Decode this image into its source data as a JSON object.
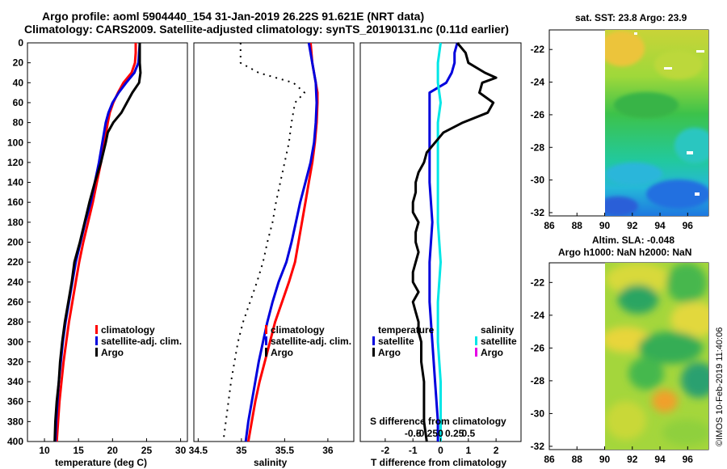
{
  "header": {
    "line1": "Argo profile: aoml 5904440_154 31-Jan-2019 26.22S 91.621E (NRT data)",
    "line2": "Climatology: CARS2009. Satellite-adjusted climatology: synTS_20190131.nc (0.11d earlier)"
  },
  "footer": "©IMOS 10-Feb-2019 11:40:06",
  "colors": {
    "climatology": "#ff0000",
    "satellite": "#0000dd",
    "argo": "#000000",
    "sat_salinity": "#00e6e6",
    "sat_salinity_magenta": "#e600e6"
  },
  "chart_data": [
    {
      "type": "line",
      "panel": "temperature",
      "xlabel": "temperature (deg C)",
      "ylabel": "",
      "xlim": [
        7.5,
        31
      ],
      "ylim": [
        400,
        0
      ],
      "xticks": [
        10,
        15,
        20,
        25,
        30
      ],
      "yticks": [
        0,
        20,
        40,
        60,
        80,
        100,
        120,
        140,
        160,
        180,
        200,
        220,
        240,
        260,
        280,
        300,
        320,
        340,
        360,
        380,
        400
      ],
      "legend": [
        "climatology",
        "satellite-adj. clim.",
        "Argo"
      ],
      "legend_position": "lower-right",
      "series": [
        {
          "name": "climatology",
          "color": "#ff0000",
          "depth": [
            0,
            10,
            20,
            30,
            40,
            50,
            60,
            70,
            80,
            100,
            120,
            140,
            160,
            180,
            200,
            220,
            240,
            260,
            280,
            300,
            320,
            340,
            360,
            380,
            400
          ],
          "values": [
            23.4,
            23.4,
            23.3,
            22.8,
            21.6,
            20.8,
            20.1,
            19.6,
            19.3,
            18.8,
            18.3,
            17.7,
            17.1,
            16.4,
            15.7,
            15.1,
            14.6,
            14.1,
            13.6,
            13.2,
            12.8,
            12.5,
            12.2,
            12.0,
            11.8
          ]
        },
        {
          "name": "satellite-adj. clim.",
          "color": "#0000dd",
          "depth": [
            0,
            10,
            20,
            30,
            40,
            50,
            60,
            70,
            80,
            100,
            120,
            140,
            160,
            180,
            200,
            220,
            240,
            260,
            280,
            300,
            320,
            340,
            360,
            380,
            400
          ],
          "values": [
            24.0,
            23.9,
            23.8,
            23.2,
            22.0,
            20.9,
            20.0,
            19.4,
            19.0,
            18.5,
            18.0,
            17.4,
            16.8,
            16.0,
            15.3,
            14.6,
            14.1,
            13.6,
            13.1,
            12.7,
            12.4,
            12.1,
            11.9,
            11.7,
            11.6
          ]
        },
        {
          "name": "Argo",
          "color": "#000000",
          "depth": [
            0,
            10,
            20,
            30,
            40,
            50,
            60,
            70,
            80,
            90,
            100,
            120,
            140,
            160,
            180,
            200,
            220,
            240,
            260,
            280,
            300,
            320,
            340,
            360,
            380,
            400
          ],
          "values": [
            24.0,
            24.0,
            24.0,
            24.1,
            23.9,
            22.9,
            22.1,
            21.3,
            20.1,
            19.3,
            19.0,
            18.3,
            17.4,
            16.6,
            15.9,
            15.2,
            14.4,
            14.0,
            13.5,
            13.0,
            12.6,
            12.3,
            12.1,
            11.8,
            11.6,
            11.5
          ]
        }
      ]
    },
    {
      "type": "line",
      "panel": "salinity",
      "xlabel": "salinity",
      "xlim": [
        34.45,
        36.3
      ],
      "ylim": [
        400,
        0
      ],
      "xtick_values": [
        34.5,
        35,
        35.5,
        36
      ],
      "xtick_labels": [
        "34.5",
        "35",
        "35.5",
        "36"
      ],
      "legend": [
        "climatology",
        "satellite-adj. clim.",
        "Argo"
      ],
      "legend_position": "lower-right",
      "series": [
        {
          "name": "climatology",
          "color": "#ff0000",
          "depth": [
            0,
            20,
            40,
            50,
            60,
            80,
            100,
            120,
            140,
            160,
            180,
            200,
            220,
            240,
            260,
            280,
            300,
            320,
            340,
            360,
            380,
            400
          ],
          "values": [
            35.8,
            35.82,
            35.86,
            35.88,
            35.88,
            35.87,
            35.85,
            35.82,
            35.78,
            35.74,
            35.7,
            35.66,
            35.62,
            35.55,
            35.47,
            35.39,
            35.33,
            35.27,
            35.21,
            35.16,
            35.12,
            35.08
          ]
        },
        {
          "name": "satellite-adj. clim.",
          "color": "#0000dd",
          "depth": [
            0,
            20,
            40,
            60,
            80,
            100,
            120,
            140,
            160,
            180,
            200,
            220,
            240,
            260,
            280,
            300,
            320,
            340,
            360,
            380,
            400
          ],
          "values": [
            35.78,
            35.82,
            35.86,
            35.87,
            35.86,
            35.84,
            35.8,
            35.74,
            35.68,
            35.63,
            35.58,
            35.52,
            35.43,
            35.36,
            35.3,
            35.25,
            35.2,
            35.16,
            35.12,
            35.08,
            35.05
          ]
        },
        {
          "name": "Argo",
          "color": "#000000",
          "dotted": true,
          "depth": [
            0,
            20,
            30,
            40,
            50,
            60,
            80,
            100,
            120,
            140,
            160,
            180,
            200,
            220,
            240,
            260,
            280,
            300,
            320,
            340,
            360,
            380,
            400
          ],
          "values": [
            34.99,
            34.99,
            35.2,
            35.6,
            35.73,
            35.62,
            35.58,
            35.55,
            35.5,
            35.45,
            35.4,
            35.36,
            35.3,
            35.25,
            35.18,
            35.1,
            35.02,
            34.96,
            34.92,
            34.88,
            34.85,
            34.82,
            34.79
          ]
        }
      ]
    },
    {
      "type": "line",
      "panel": "differences",
      "xlabel": "T difference from climatology",
      "xlabel2": "S difference from climatology",
      "xlim": [
        -2.9,
        2.9
      ],
      "xticks": [
        -2,
        -1,
        0,
        1,
        2
      ],
      "xticks2_values": [
        -0.5,
        -0.25,
        0,
        0.25,
        0.5
      ],
      "xticks2_labels": [
        "-0.5",
        "-0.25",
        "0",
        "0.25",
        "0.5"
      ],
      "ylim": [
        400,
        0
      ],
      "legend_temperature_title": "temperature",
      "legend_temperature": [
        "satellite",
        "Argo"
      ],
      "legend_salinity_title": "salinity",
      "legend_salinity": [
        "satellite",
        "Argo"
      ],
      "series": [
        {
          "name": "satellite T",
          "color": "#0000dd",
          "depth": [
            0,
            10,
            20,
            30,
            40,
            50,
            60,
            80,
            100,
            140,
            180,
            220,
            260,
            300,
            340,
            380,
            400
          ],
          "values": [
            0.6,
            0.5,
            0.5,
            0.4,
            0.2,
            -0.4,
            -0.4,
            -0.4,
            -0.4,
            -0.4,
            -0.3,
            -0.4,
            -0.4,
            -0.3,
            -0.2,
            -0.1,
            -0.1
          ]
        },
        {
          "name": "satellite S",
          "color": "#00e6e6",
          "depth": [
            0,
            20,
            40,
            60,
            80,
            100,
            140,
            180,
            220,
            260,
            300,
            340,
            380,
            400
          ],
          "values": [
            0.0,
            -0.1,
            -0.1,
            0.0,
            -0.1,
            -0.1,
            -0.1,
            -0.1,
            0.0,
            -0.1,
            -0.1,
            0.0,
            0.0,
            0.0
          ]
        },
        {
          "name": "Argo T",
          "color": "#000000",
          "depth": [
            0,
            10,
            20,
            30,
            35,
            40,
            50,
            60,
            70,
            80,
            90,
            100,
            110,
            120,
            130,
            140,
            150,
            160,
            170,
            180,
            190,
            200,
            210,
            220,
            230,
            240,
            250,
            260,
            270,
            280,
            290,
            300,
            320,
            340,
            360,
            380,
            400
          ],
          "values": [
            0.6,
            0.9,
            1.0,
            1.6,
            2.0,
            1.5,
            1.4,
            1.9,
            1.7,
            0.8,
            0.1,
            -0.2,
            -0.5,
            -0.6,
            -0.8,
            -0.9,
            -0.9,
            -1.0,
            -1.0,
            -0.8,
            -0.9,
            -0.9,
            -0.8,
            -0.9,
            -1.0,
            -1.0,
            -0.8,
            -1.0,
            -0.9,
            -0.8,
            -0.8,
            -0.7,
            -0.7,
            -0.6,
            -0.6,
            -0.6,
            -0.5
          ]
        }
      ]
    },
    {
      "type": "heatmap",
      "panel": "satellite SST map",
      "title": "sat. SST: 23.8 Argo: 23.9",
      "xlim": [
        86,
        97.5
      ],
      "ylim": [
        -32.2,
        -20.8
      ],
      "xticks": [
        86,
        88,
        90,
        92,
        94,
        96
      ],
      "yticks": [
        -22,
        -24,
        -26,
        -28,
        -30,
        -32
      ]
    },
    {
      "type": "heatmap",
      "panel": "altimetry SLA map",
      "title": "Altim. SLA: -0.048",
      "subtitle": "Argo h1000: NaN h2000: NaN",
      "xlim": [
        86,
        97.5
      ],
      "ylim": [
        -32.2,
        -20.8
      ],
      "xticks": [
        86,
        88,
        90,
        92,
        94,
        96
      ],
      "yticks": [
        -22,
        -24,
        -26,
        -28,
        -30,
        -32
      ]
    }
  ]
}
